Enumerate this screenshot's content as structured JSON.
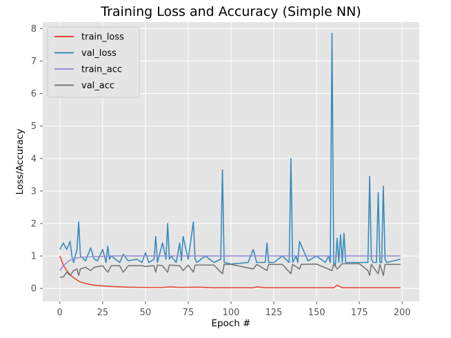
{
  "chart_data": {
    "type": "line",
    "title": "Training Loss and Accuracy (Simple NN)",
    "xlabel": "Epoch #",
    "ylabel": "Loss/Accuracy",
    "xlim": [
      -10,
      210
    ],
    "ylim": [
      -0.4,
      8.2
    ],
    "xticks": [
      0,
      25,
      50,
      75,
      100,
      125,
      150,
      175,
      200
    ],
    "yticks": [
      0,
      1,
      2,
      3,
      4,
      5,
      6,
      7,
      8
    ],
    "grid": true,
    "legend_position": "top-left",
    "colors": {
      "train_loss": "#E24A33",
      "val_loss": "#348ABD",
      "train_acc": "#988ED5",
      "val_acc": "#777777"
    },
    "series": [
      {
        "name": "train_loss",
        "x": [
          0,
          2,
          4,
          6,
          8,
          10,
          12,
          15,
          20,
          25,
          30,
          40,
          50,
          60,
          65,
          70,
          80,
          90,
          100,
          113,
          115,
          120,
          150,
          160,
          162,
          165,
          170,
          180,
          190,
          199
        ],
        "y": [
          1.0,
          0.72,
          0.55,
          0.42,
          0.33,
          0.26,
          0.2,
          0.15,
          0.1,
          0.08,
          0.06,
          0.04,
          0.03,
          0.03,
          0.05,
          0.03,
          0.04,
          0.02,
          0.02,
          0.02,
          0.05,
          0.02,
          0.02,
          0.02,
          0.1,
          0.02,
          0.02,
          0.02,
          0.02,
          0.02
        ]
      },
      {
        "name": "val_loss",
        "x": [
          0,
          2,
          4,
          6,
          7,
          8,
          10,
          11,
          12,
          15,
          18,
          20,
          22,
          25,
          27,
          28,
          29,
          30,
          35,
          37,
          40,
          45,
          48,
          50,
          52,
          55,
          56,
          57,
          60,
          62,
          63,
          64,
          65,
          68,
          70,
          71,
          72,
          75,
          78,
          79,
          80,
          85,
          90,
          94,
          95,
          96,
          100,
          110,
          113,
          115,
          120,
          121,
          122,
          125,
          130,
          134,
          135,
          136,
          138,
          139,
          140,
          145,
          150,
          155,
          157,
          158,
          159,
          160,
          161,
          162,
          163,
          164,
          165,
          166,
          167,
          168,
          170,
          175,
          178,
          179,
          180,
          181,
          182,
          183,
          184,
          185,
          186,
          187,
          188,
          189,
          190,
          191,
          195,
          199
        ],
        "y": [
          1.2,
          1.4,
          1.2,
          1.45,
          1.0,
          0.8,
          1.2,
          2.05,
          1.0,
          0.85,
          1.25,
          0.9,
          0.85,
          1.2,
          0.8,
          1.3,
          0.9,
          1.0,
          0.8,
          1.05,
          0.85,
          0.9,
          0.8,
          1.1,
          0.8,
          0.9,
          1.6,
          0.8,
          1.4,
          0.9,
          2.0,
          0.9,
          1.0,
          0.8,
          1.4,
          0.85,
          1.6,
          0.9,
          2.05,
          0.9,
          0.8,
          1.0,
          0.8,
          0.9,
          3.65,
          0.8,
          0.75,
          0.8,
          1.2,
          0.8,
          0.8,
          1.4,
          0.8,
          0.8,
          1.0,
          0.8,
          4.0,
          0.8,
          1.0,
          0.8,
          1.45,
          0.85,
          1.0,
          0.8,
          1.0,
          0.8,
          7.85,
          0.8,
          0.7,
          1.55,
          0.8,
          1.65,
          0.8,
          1.7,
          0.8,
          0.8,
          0.8,
          0.8,
          0.8,
          0.8,
          0.8,
          3.45,
          0.9,
          0.8,
          0.8,
          0.8,
          2.95,
          0.8,
          0.8,
          3.15,
          0.9,
          0.8,
          0.85,
          0.9
        ]
      },
      {
        "name": "train_acc",
        "x": [
          0,
          2,
          4,
          6,
          8,
          10,
          12,
          15,
          20,
          25,
          30,
          199
        ],
        "y": [
          0.55,
          0.7,
          0.8,
          0.87,
          0.91,
          0.94,
          0.96,
          0.97,
          0.98,
          0.99,
          1.0,
          1.0
        ]
      },
      {
        "name": "val_acc",
        "x": [
          0,
          2,
          4,
          6,
          8,
          10,
          11,
          12,
          15,
          18,
          20,
          25,
          28,
          30,
          35,
          37,
          40,
          48,
          50,
          55,
          56,
          57,
          60,
          63,
          64,
          70,
          72,
          75,
          78,
          79,
          80,
          90,
          95,
          96,
          100,
          113,
          115,
          121,
          122,
          130,
          135,
          136,
          140,
          141,
          150,
          159,
          160,
          162,
          165,
          175,
          180,
          181,
          182,
          186,
          187,
          189,
          190,
          195,
          199
        ],
        "y": [
          0.35,
          0.35,
          0.5,
          0.4,
          0.55,
          0.6,
          0.4,
          0.6,
          0.65,
          0.55,
          0.65,
          0.7,
          0.5,
          0.7,
          0.7,
          0.5,
          0.7,
          0.7,
          0.68,
          0.7,
          0.5,
          0.72,
          0.7,
          0.5,
          0.72,
          0.7,
          0.55,
          0.72,
          0.5,
          0.72,
          0.72,
          0.72,
          0.45,
          0.74,
          0.74,
          0.6,
          0.74,
          0.55,
          0.74,
          0.74,
          0.45,
          0.74,
          0.6,
          0.74,
          0.75,
          0.55,
          0.76,
          0.6,
          0.76,
          0.76,
          0.55,
          0.4,
          0.74,
          0.45,
          0.74,
          0.4,
          0.74,
          0.74,
          0.74
        ]
      }
    ]
  }
}
